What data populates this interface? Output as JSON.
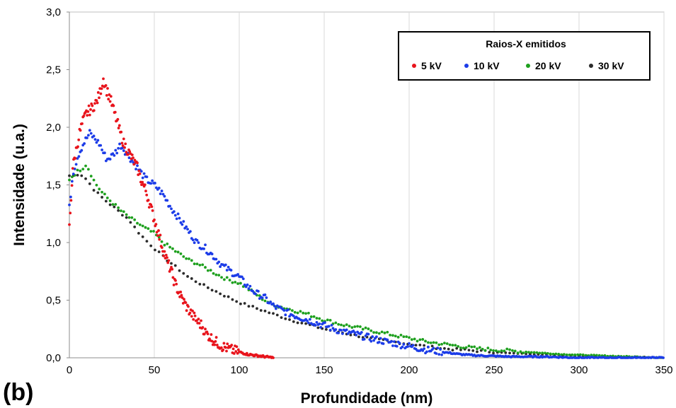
{
  "panel_label": "(b)",
  "chart_data": {
    "type": "scatter",
    "title": "",
    "xlabel": "Profundidade (nm)",
    "ylabel": "Intensidade (u.a.)",
    "xlim": [
      0,
      350
    ],
    "ylim": [
      0,
      3.0
    ],
    "x_ticks": [
      "0",
      "50",
      "100",
      "150",
      "200",
      "250",
      "300",
      "350"
    ],
    "y_ticks": [
      "0,0",
      "0,5",
      "1,0",
      "1,5",
      "2,0",
      "2,5",
      "3,0"
    ],
    "grid": "vertical",
    "legend": {
      "title": "Raios-X emitidos",
      "placement": "top-right"
    },
    "series": [
      {
        "name": "5 kV",
        "color": "#e8141c",
        "x": [
          0,
          2,
          4,
          6,
          8,
          10,
          12,
          14,
          16,
          18,
          20,
          22,
          24,
          26,
          28,
          30,
          32,
          35,
          38,
          40,
          42,
          45,
          48,
          50,
          52,
          55,
          58,
          60,
          62,
          65,
          68,
          70,
          72,
          75,
          78,
          80,
          85,
          90,
          95,
          100,
          105,
          110,
          115,
          120
        ],
        "y": [
          1.13,
          1.65,
          1.8,
          1.95,
          2.05,
          2.12,
          2.15,
          2.18,
          2.22,
          2.3,
          2.42,
          2.32,
          2.25,
          2.15,
          2.05,
          1.95,
          1.86,
          1.78,
          1.7,
          1.65,
          1.55,
          1.45,
          1.3,
          1.2,
          1.1,
          0.95,
          0.82,
          0.75,
          0.65,
          0.55,
          0.47,
          0.42,
          0.38,
          0.32,
          0.28,
          0.22,
          0.15,
          0.1,
          0.07,
          0.05,
          0.03,
          0.02,
          0.01,
          0.0
        ]
      },
      {
        "name": "10 kV",
        "color": "#1c3ce8",
        "x": [
          0,
          2,
          5,
          8,
          10,
          12,
          15,
          18,
          20,
          22,
          25,
          28,
          30,
          35,
          40,
          45,
          50,
          55,
          60,
          65,
          70,
          75,
          80,
          85,
          90,
          95,
          100,
          105,
          110,
          115,
          120,
          130,
          140,
          150,
          160,
          170,
          180,
          190,
          200,
          210,
          220,
          230,
          240,
          260,
          280,
          300,
          320,
          350
        ],
        "y": [
          1.3,
          1.6,
          1.75,
          1.85,
          1.9,
          1.95,
          1.9,
          1.85,
          1.78,
          1.72,
          1.75,
          1.8,
          1.85,
          1.75,
          1.65,
          1.55,
          1.5,
          1.42,
          1.3,
          1.2,
          1.1,
          1.0,
          0.95,
          0.88,
          0.8,
          0.75,
          0.7,
          0.62,
          0.56,
          0.52,
          0.45,
          0.38,
          0.33,
          0.28,
          0.23,
          0.2,
          0.16,
          0.13,
          0.1,
          0.07,
          0.05,
          0.03,
          0.02,
          0.01,
          0.01,
          0.0,
          0.0,
          0.0
        ]
      },
      {
        "name": "20 kV",
        "color": "#1ea01e",
        "x": [
          0,
          2,
          5,
          8,
          10,
          15,
          20,
          25,
          30,
          35,
          40,
          45,
          50,
          55,
          60,
          65,
          70,
          75,
          80,
          85,
          90,
          95,
          100,
          105,
          110,
          115,
          120,
          130,
          140,
          150,
          160,
          170,
          180,
          190,
          200,
          210,
          220,
          230,
          240,
          250,
          260,
          270,
          280,
          290,
          300,
          310,
          320,
          330,
          340,
          350
        ],
        "y": [
          1.55,
          1.58,
          1.62,
          1.65,
          1.68,
          1.52,
          1.42,
          1.35,
          1.28,
          1.22,
          1.17,
          1.12,
          1.08,
          1.0,
          0.95,
          0.9,
          0.85,
          0.82,
          0.78,
          0.74,
          0.7,
          0.67,
          0.65,
          0.6,
          0.55,
          0.5,
          0.46,
          0.42,
          0.38,
          0.33,
          0.29,
          0.26,
          0.23,
          0.2,
          0.17,
          0.14,
          0.12,
          0.1,
          0.08,
          0.07,
          0.06,
          0.05,
          0.04,
          0.03,
          0.025,
          0.02,
          0.015,
          0.01,
          0.005,
          0.0
        ]
      },
      {
        "name": "30 kV",
        "color": "#2b2b2b",
        "x": [
          0,
          3,
          6,
          10,
          15,
          20,
          25,
          30,
          35,
          40,
          45,
          50,
          55,
          60,
          65,
          70,
          75,
          80,
          90,
          100,
          110,
          120,
          130,
          140,
          150,
          160,
          170,
          180,
          190,
          200,
          210,
          220,
          230,
          240,
          250,
          260,
          270,
          280,
          290,
          300,
          310,
          320,
          330,
          340,
          350
        ],
        "y": [
          1.58,
          1.58,
          1.6,
          1.55,
          1.45,
          1.38,
          1.32,
          1.26,
          1.2,
          1.1,
          1.02,
          0.95,
          0.88,
          0.82,
          0.76,
          0.7,
          0.66,
          0.62,
          0.55,
          0.48,
          0.43,
          0.38,
          0.33,
          0.29,
          0.25,
          0.22,
          0.19,
          0.16,
          0.14,
          0.12,
          0.1,
          0.08,
          0.07,
          0.06,
          0.05,
          0.04,
          0.035,
          0.03,
          0.025,
          0.02,
          0.015,
          0.01,
          0.008,
          0.005,
          0.0
        ]
      }
    ]
  }
}
